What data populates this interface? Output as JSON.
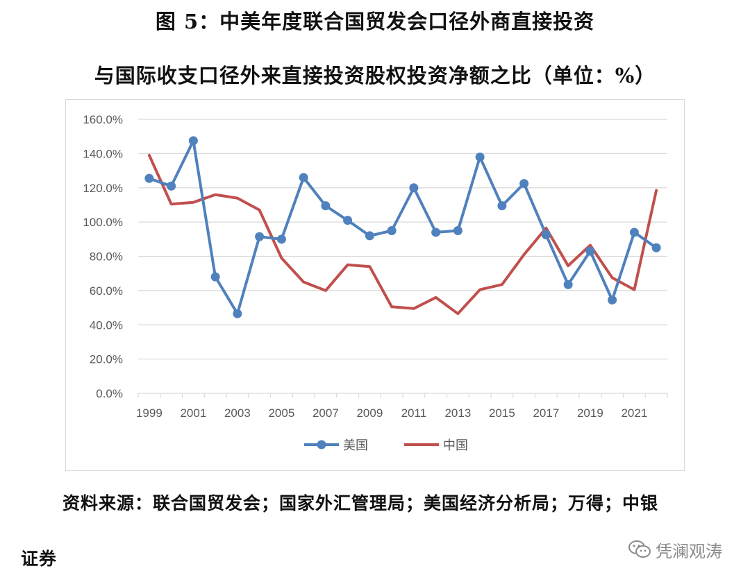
{
  "header": {
    "title_line1": "图 5：中美年度联合国贸发会口径外商直接投资",
    "title_line2": "与国际收支口径外来直接投资股权投资净额之比（单位：%）"
  },
  "footer": {
    "source_line1": "资料来源：联合国贸发会；国家外汇管理局；美国经济分析局；万得；中银",
    "source_line2": "证券"
  },
  "watermark": {
    "text": "凭澜观涛",
    "icon": "wechat-icon"
  },
  "colors": {
    "us": "#4f81bd",
    "china": "#c0504d",
    "grid": "#d9d9d9",
    "text": "#595959"
  },
  "chart_data": {
    "type": "line",
    "title": "",
    "xlabel": "",
    "ylabel": "",
    "ylim": [
      0,
      160
    ],
    "yticks": [
      "0.0%",
      "20.0%",
      "40.0%",
      "60.0%",
      "80.0%",
      "100.0%",
      "120.0%",
      "140.0%",
      "160.0%"
    ],
    "x": [
      1999,
      2000,
      2001,
      2002,
      2003,
      2004,
      2005,
      2006,
      2007,
      2008,
      2009,
      2010,
      2011,
      2012,
      2013,
      2014,
      2015,
      2016,
      2017,
      2018,
      2019,
      2020,
      2021,
      2022
    ],
    "xtick_labels": [
      "1999",
      "2001",
      "2003",
      "2005",
      "2007",
      "2009",
      "2011",
      "2013",
      "2015",
      "2017",
      "2019",
      "2021"
    ],
    "grid": true,
    "legend_position": "bottom",
    "series": [
      {
        "name": "美国",
        "markers": true,
        "values": [
          125.5,
          121,
          147.5,
          68,
          46.5,
          91.5,
          90,
          126,
          109.5,
          101,
          92,
          95,
          120,
          94,
          95,
          138,
          109.5,
          122.5,
          92.5,
          63.5,
          83,
          54.5,
          94,
          85
        ]
      },
      {
        "name": "中国",
        "markers": false,
        "values": [
          139,
          110.5,
          111.5,
          116,
          114,
          107,
          79,
          65,
          60,
          75,
          74,
          50.5,
          49.5,
          56,
          46.5,
          60.5,
          63.5,
          81,
          96.5,
          74.5,
          86.5,
          67.5,
          60.5,
          118.5
        ]
      }
    ]
  }
}
